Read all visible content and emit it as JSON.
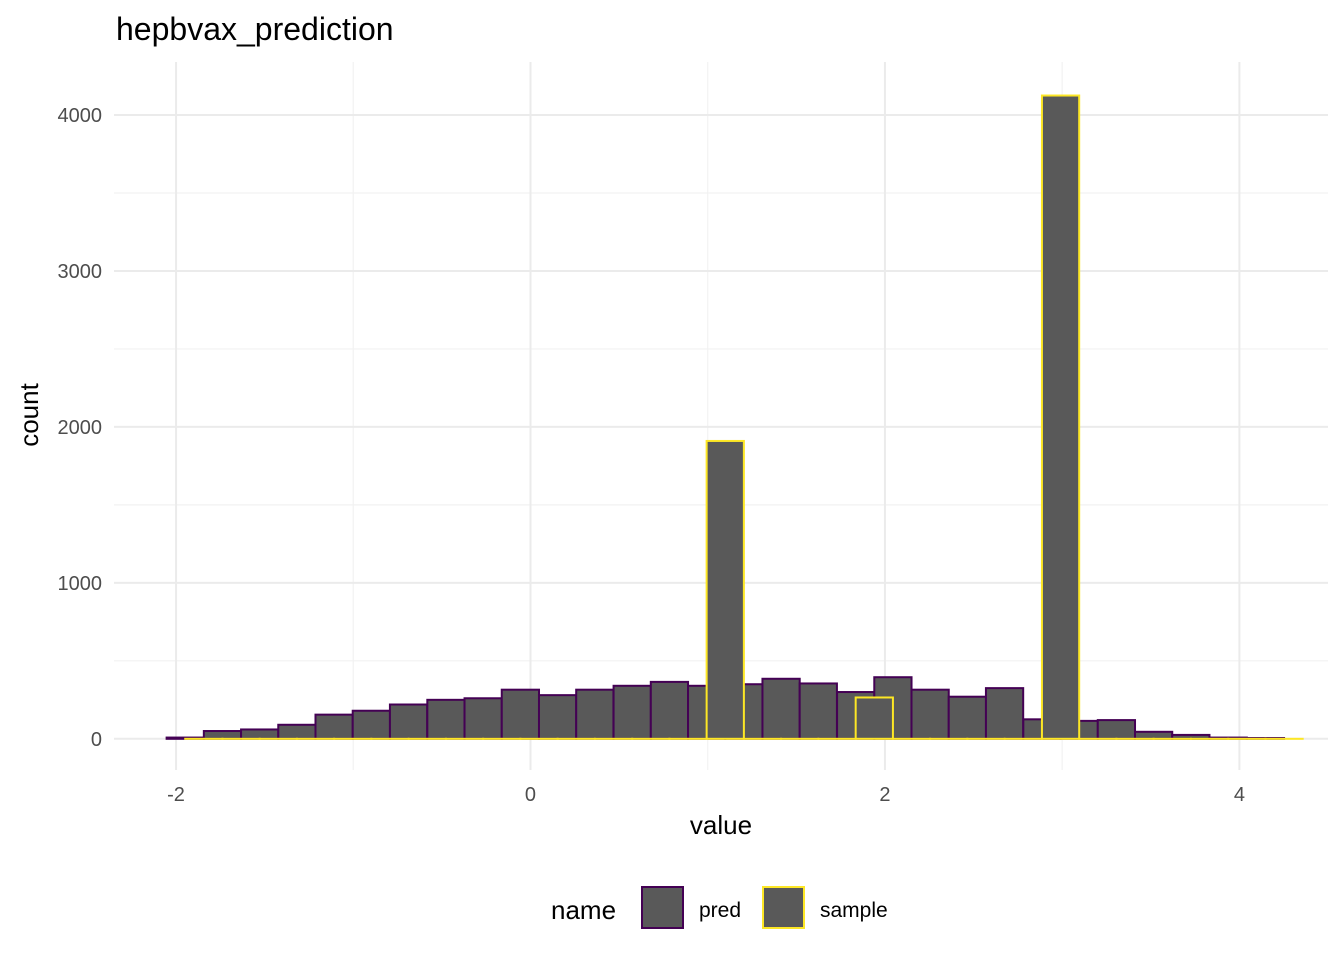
{
  "chart_data": {
    "type": "bar",
    "title": "hepbvax_prediction",
    "xlabel": "value",
    "ylabel": "count",
    "xlim": [
      -2.35,
      4.5
    ],
    "ylim": [
      -200,
      4340
    ],
    "x_ticks": [
      -2,
      0,
      2,
      4
    ],
    "x_tick_labels": [
      "-2",
      "0",
      "2",
      "4"
    ],
    "y_ticks": [
      0,
      1000,
      2000,
      3000,
      4000
    ],
    "y_tick_labels": [
      "0",
      "1000",
      "2000",
      "3000",
      "4000"
    ],
    "grid": true,
    "bin_width": 0.2102,
    "legend": {
      "title": "name",
      "placement": "bottom"
    },
    "series": [
      {
        "name": "pred",
        "fill": "#595959",
        "outline": "#440154",
        "x": [
          -1.948,
          -1.738,
          -1.528,
          -1.318,
          -1.108,
          -0.898,
          -0.688,
          -0.477,
          -0.267,
          -0.057,
          0.153,
          0.363,
          0.574,
          0.784,
          0.994,
          1.204,
          1.414,
          1.624,
          1.835,
          2.045,
          2.255,
          2.465,
          2.675,
          2.886,
          3.096,
          3.306,
          3.516,
          3.726,
          3.937,
          4.147
        ],
        "values": [
          8,
          50,
          60,
          90,
          155,
          180,
          220,
          250,
          260,
          315,
          280,
          315,
          340,
          365,
          340,
          350,
          385,
          355,
          300,
          395,
          315,
          270,
          325,
          125,
          115,
          120,
          45,
          25,
          8,
          5
        ]
      },
      {
        "name": "sample",
        "fill": "#595959",
        "outline": "#fde725",
        "x": [
          -1.843,
          -1.633,
          -1.423,
          -1.213,
          -1.003,
          -0.793,
          -0.582,
          -0.372,
          -0.162,
          0.048,
          0.258,
          0.469,
          0.679,
          0.889,
          1.099,
          1.309,
          1.519,
          1.73,
          1.94,
          2.15,
          2.36,
          2.57,
          2.781,
          2.991,
          3.201,
          3.411,
          3.621,
          3.832,
          4.042,
          4.252
        ],
        "values": [
          0,
          0,
          0,
          0,
          0,
          0,
          0,
          0,
          0,
          0,
          0,
          0,
          0,
          0,
          1910,
          0,
          0,
          0,
          265,
          0,
          0,
          0,
          0,
          4125,
          0,
          0,
          0,
          0,
          0,
          0
        ]
      }
    ]
  }
}
